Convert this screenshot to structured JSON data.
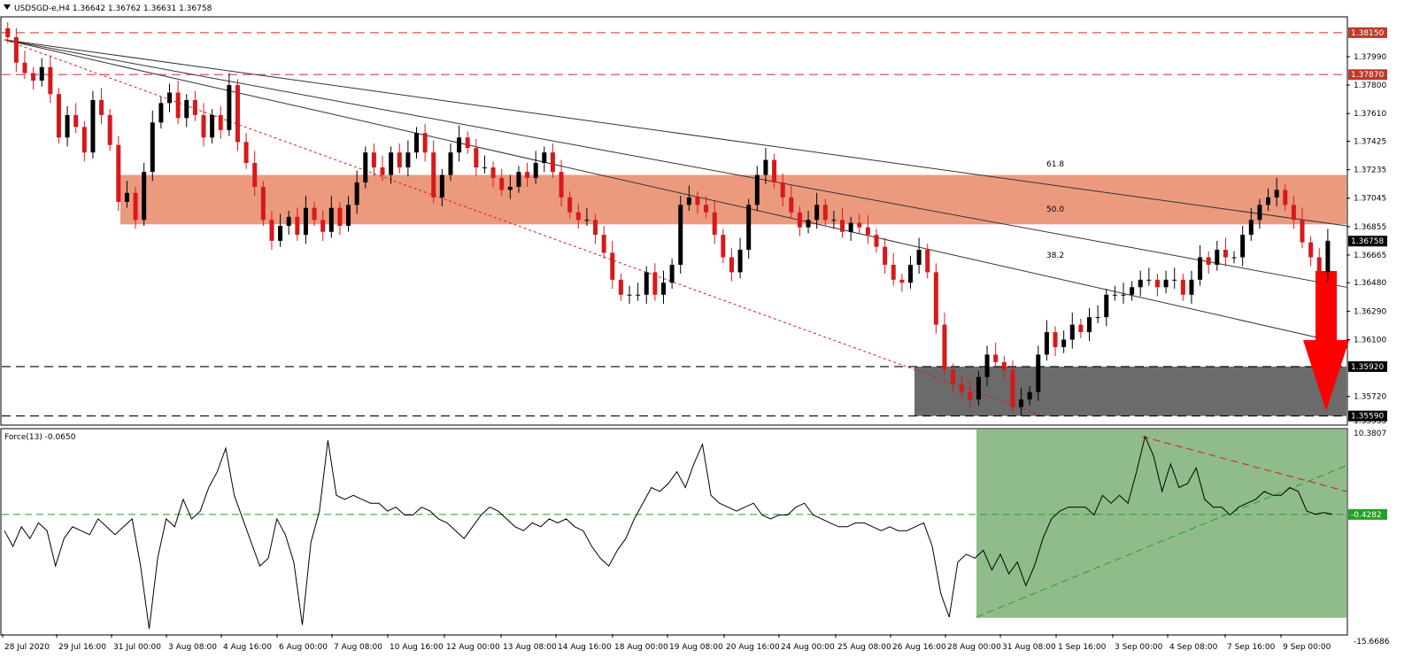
{
  "colors": {
    "bull": "#000000",
    "bear": "#d7191c",
    "resistance_zone": "#ec9a7e",
    "support_zone": "#6b6b6b",
    "level_line": "#e05050",
    "gray_level": "#333333",
    "force_zone": "#8fbc8a",
    "force_zero": "#22a022",
    "arrow": "#ff0000",
    "axis_tag_bg": "#c0392b"
  },
  "main_panel": {
    "title": "USDSGD-e,H4  1.36642 1.36762 1.36631 1.36758",
    "collapse_icon": "triangle-down-icon"
  },
  "force_panel": {
    "title": "Force(13) -0.0650"
  },
  "chart_data": [
    {
      "type": "candlestick",
      "symbol": "USDSGD-e",
      "timeframe": "H4",
      "last_ohlc": [
        1.36642,
        1.36762,
        1.36631,
        1.36758
      ],
      "ylim": [
        1.35535,
        1.3825
      ],
      "y_ticks": [
        "1.37990",
        "1.37800",
        "1.37610",
        "1.37425",
        "1.37235",
        "1.37045",
        "1.36855",
        "1.36665",
        "1.36480",
        "1.36290",
        "1.36100",
        "1.35720"
      ],
      "x_ticks": [
        "28 Jul 2020",
        "29 Jul 16:00",
        "31 Jul 00:00",
        "3 Aug 08:00",
        "4 Aug 16:00",
        "6 Aug 00:00",
        "7 Aug 08:00",
        "10 Aug 16:00",
        "12 Aug 00:00",
        "13 Aug 08:00",
        "14 Aug 16:00",
        "18 Aug 00:00",
        "19 Aug 08:00",
        "20 Aug 16:00",
        "24 Aug 00:00",
        "25 Aug 08:00",
        "26 Aug 16:00",
        "28 Aug 00:00",
        "31 Aug 08:00",
        "1 Sep 16:00",
        "3 Sep 00:00",
        "4 Sep 08:00",
        "7 Sep 16:00",
        "9 Sep 00:00"
      ],
      "levels": {
        "red_dashed": [
          "1.38150",
          "1.37870"
        ],
        "black_dashed": [
          "1.35920",
          "1.35590"
        ]
      },
      "current_price_label": "1.36758",
      "bottom_tick": "1.35535",
      "fib_labels": [
        "61.8",
        "50.0",
        "38.2"
      ],
      "zones": {
        "resistance": [
          1.3687,
          1.372
        ],
        "support": [
          1.3559,
          1.3592
        ]
      },
      "candles_close": [
        1.3812,
        1.3795,
        1.3788,
        1.3783,
        1.3792,
        1.3774,
        1.3745,
        1.376,
        1.3752,
        1.3735,
        1.377,
        1.376,
        1.374,
        1.3702,
        1.3708,
        1.369,
        1.3722,
        1.3755,
        1.3768,
        1.3775,
        1.3758,
        1.377,
        1.376,
        1.3745,
        1.376,
        1.375,
        1.378,
        1.3742,
        1.3728,
        1.3712,
        1.369,
        1.3676,
        1.3686,
        1.3692,
        1.368,
        1.3698,
        1.369,
        1.3682,
        1.3698,
        1.3686,
        1.37,
        1.3715,
        1.3735,
        1.3725,
        1.372,
        1.3735,
        1.3725,
        1.3735,
        1.3748,
        1.3735,
        1.3705,
        1.372,
        1.3735,
        1.3745,
        1.3738,
        1.3725,
        1.3725,
        1.3718,
        1.371,
        1.3712,
        1.3722,
        1.3718,
        1.3728,
        1.3735,
        1.3722,
        1.3705,
        1.3695,
        1.369,
        1.369,
        1.368,
        1.3668,
        1.365,
        1.364,
        1.364,
        1.364,
        1.3655,
        1.364,
        1.3648,
        1.366,
        1.37,
        1.3705,
        1.37,
        1.3695,
        1.368,
        1.3665,
        1.3655,
        1.367,
        1.37,
        1.372,
        1.373,
        1.3715,
        1.3705,
        1.3695,
        1.3685,
        1.369,
        1.37,
        1.369,
        1.369,
        1.3682,
        1.3688,
        1.3685,
        1.368,
        1.3672,
        1.366,
        1.365,
        1.3648,
        1.366,
        1.367,
        1.3655,
        1.362,
        1.359,
        1.358,
        1.3575,
        1.357,
        1.3585,
        1.36,
        1.3595,
        1.359,
        1.3565,
        1.357,
        1.3575,
        1.36,
        1.3615,
        1.3605,
        1.361,
        1.362,
        1.3615,
        1.3625,
        1.3625,
        1.364,
        1.364,
        1.364,
        1.3645,
        1.365,
        1.365,
        1.3645,
        1.365,
        1.365,
        1.364,
        1.365,
        1.3665,
        1.366,
        1.367,
        1.3665,
        1.3665,
        1.368,
        1.369,
        1.37,
        1.3705,
        1.371,
        1.37,
        1.369,
        1.3675,
        1.3665,
        1.3655,
        1.3676
      ]
    },
    {
      "type": "line",
      "name": "Force(13)",
      "last_value": -0.065,
      "ylim": [
        -15.6686,
        10.3807
      ],
      "y_ticks": [
        "10.3807",
        "-0.4282",
        "-15.6686"
      ],
      "current_label": "-0.4282",
      "values": [
        -2.5,
        -4.5,
        -2.0,
        -3.5,
        -1.5,
        -2.5,
        -7.0,
        -3.5,
        -2.0,
        -2.5,
        -3.0,
        -1.0,
        -2.0,
        -3.0,
        -2.0,
        -1.0,
        -7.0,
        -15.0,
        -6.0,
        -1.0,
        -2.0,
        1.5,
        -1.0,
        0.0,
        3.0,
        5.0,
        8.0,
        2.0,
        -1.0,
        -4.0,
        -7.0,
        -6.0,
        -1.0,
        -3.0,
        -6.5,
        -14.5,
        -4.0,
        0.0,
        9.0,
        2.0,
        1.5,
        2.0,
        1.5,
        1.0,
        1.0,
        0.0,
        0.5,
        -0.5,
        -0.5,
        0.5,
        0.0,
        -1.0,
        -1.5,
        -2.5,
        -3.5,
        -2.0,
        -0.5,
        0.5,
        0.0,
        -1.0,
        -2.0,
        -2.5,
        -1.5,
        -2.0,
        -1.0,
        -1.5,
        -1.0,
        -2.0,
        -2.5,
        -4.5,
        -6.0,
        -7.0,
        -5.0,
        -3.5,
        -1.0,
        1.0,
        3.0,
        2.5,
        3.5,
        5.0,
        3.0,
        6.0,
        8.5,
        2.0,
        1.0,
        0.5,
        0.0,
        0.5,
        1.0,
        -0.5,
        -1.0,
        -0.5,
        -0.5,
        0.5,
        1.0,
        -0.5,
        -1.0,
        -1.5,
        -2.0,
        -2.0,
        -1.5,
        -1.5,
        -2.0,
        -2.5,
        -2.0,
        -2.5,
        -2.5,
        -2.0,
        -1.5,
        -4.5,
        -10.5,
        -13.5,
        -6.5,
        -5.5,
        -6.0,
        -5.0,
        -7.5,
        -5.5,
        -8.0,
        -6.5,
        -9.5,
        -7.0,
        -3.5,
        -1.0,
        0.0,
        0.5,
        0.5,
        0.5,
        -0.5,
        2.0,
        1.0,
        2.0,
        1.0,
        5.0,
        9.5,
        7.0,
        2.5,
        6.0,
        3.0,
        3.5,
        5.5,
        1.5,
        0.5,
        0.5,
        -0.5,
        0.5,
        1.0,
        1.5,
        2.5,
        2.0,
        2.0,
        3.0,
        2.5,
        0.0,
        -0.4,
        -0.2,
        -0.4
      ]
    }
  ]
}
